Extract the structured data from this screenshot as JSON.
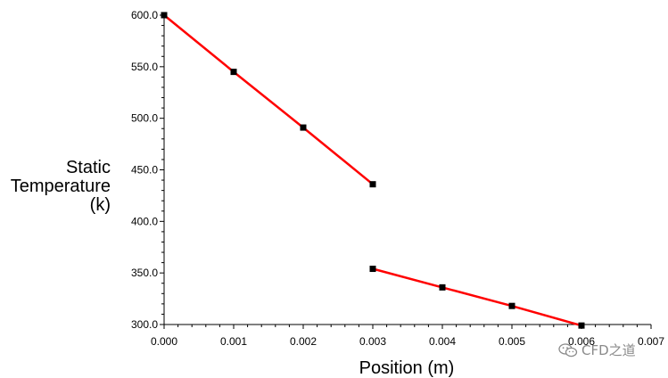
{
  "chart_data": {
    "type": "line",
    "xlabel": "Position (m)",
    "ylabel_lines": [
      "Static",
      "Temperature",
      "(k)"
    ],
    "xlim": [
      0,
      0.007
    ],
    "ylim": [
      300,
      600
    ],
    "x_ticks": [
      "0.000",
      "0.001",
      "0.002",
      "0.003",
      "0.004",
      "0.005",
      "0.006",
      "0.007"
    ],
    "y_ticks": [
      "600.0",
      "550.0",
      "500.0",
      "450.0",
      "400.0",
      "350.0",
      "300.0"
    ],
    "line_color": "#ff0000",
    "marker_color": "#000000",
    "grid": false,
    "series": [
      {
        "x": [
          0.0,
          0.001,
          0.002,
          0.003
        ],
        "y": [
          600,
          545,
          491,
          436
        ]
      },
      {
        "x": [
          0.003,
          0.004,
          0.005,
          0.006
        ],
        "y": [
          354,
          336,
          318,
          299
        ]
      }
    ]
  },
  "watermark": {
    "icon": "wechat-icon",
    "text": "CFD之道"
  }
}
